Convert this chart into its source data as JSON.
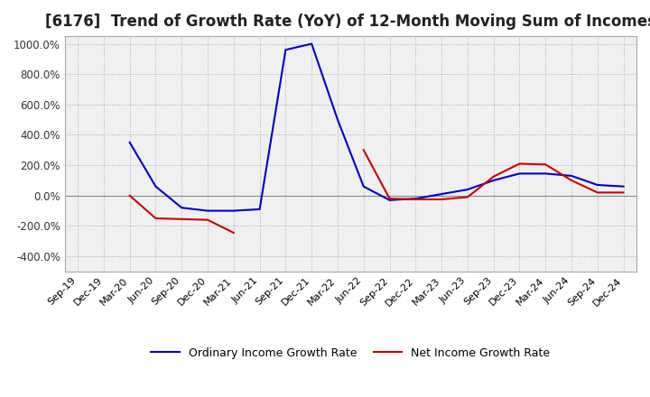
{
  "title": "[6176]  Trend of Growth Rate (YoY) of 12-Month Moving Sum of Incomes",
  "title_fontsize": 12,
  "legend_labels": [
    "Ordinary Income Growth Rate",
    "Net Income Growth Rate"
  ],
  "legend_colors": [
    "#0000cc",
    "#cc0000"
  ],
  "ylim": [
    -500,
    1050
  ],
  "yticks": [
    -400,
    -200,
    0,
    200,
    400,
    600,
    800,
    1000
  ],
  "background_color": "#ffffff",
  "plot_bg_color": "#f0f0f0",
  "grid_color": "#aaaaaa",
  "dates": [
    "Sep-19",
    "Dec-19",
    "Mar-20",
    "Jun-20",
    "Sep-20",
    "Dec-20",
    "Mar-21",
    "Jun-21",
    "Sep-21",
    "Dec-21",
    "Mar-22",
    "Jun-22",
    "Sep-22",
    "Dec-22",
    "Mar-23",
    "Jun-23",
    "Sep-23",
    "Dec-23",
    "Mar-24",
    "Jun-24",
    "Sep-24",
    "Dec-24"
  ],
  "ordinary_income": [
    null,
    null,
    350,
    60,
    -80,
    -100,
    -100,
    -90,
    960,
    1000,
    500,
    60,
    -30,
    -20,
    10,
    40,
    100,
    145,
    145,
    130,
    70,
    60
  ],
  "net_income": [
    null,
    null,
    0,
    -150,
    -155,
    -160,
    -245,
    null,
    null,
    null,
    null,
    300,
    -20,
    -25,
    -25,
    -10,
    125,
    210,
    205,
    100,
    20,
    20
  ]
}
